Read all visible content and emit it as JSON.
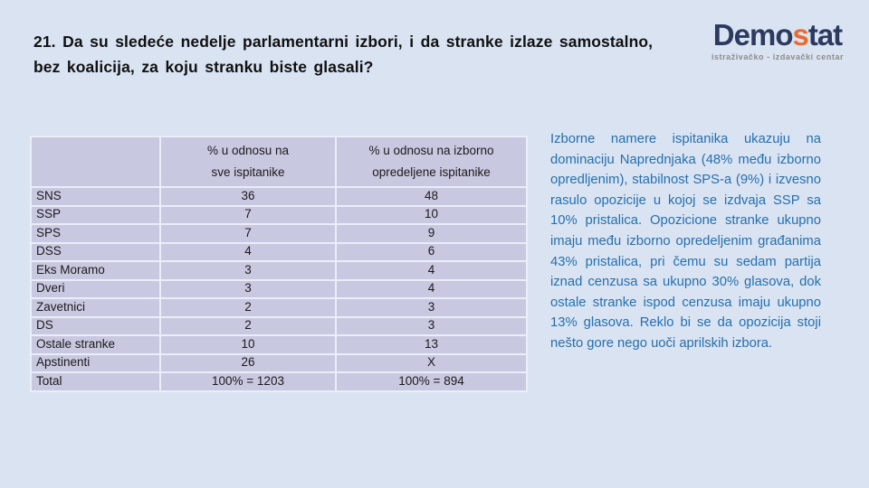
{
  "title": {
    "line1": "21. Da su sledeće nedelje parlamentarni izbori, i da stranke izlaze samostalno,",
    "line2": "bez koalicija, za koju stranku biste glasali?"
  },
  "logo": {
    "text_start": "Demo",
    "text_accent": "s",
    "text_end": "tat",
    "subtitle": "istraživačko - izdavački centar"
  },
  "table": {
    "header": {
      "col_label": "",
      "col_all_line1": "% u odnosu na",
      "col_all_line2": "sve ispitanike",
      "col_decided_line1": "% u odnosu na izborno",
      "col_decided_line2": "opredeljene ispitanike"
    },
    "rows": [
      {
        "label": "SNS",
        "all": "36",
        "decided": "48"
      },
      {
        "label": "SSP",
        "all": "7",
        "decided": "10"
      },
      {
        "label": "SPS",
        "all": "7",
        "decided": "9"
      },
      {
        "label": "DSS",
        "all": "4",
        "decided": "6"
      },
      {
        "label": "Eks Moramo",
        "all": "3",
        "decided": "4"
      },
      {
        "label": "Dveri",
        "all": "3",
        "decided": "4"
      },
      {
        "label": "Zavetnici",
        "all": "2",
        "decided": "3"
      },
      {
        "label": "DS",
        "all": "2",
        "decided": "3"
      },
      {
        "label": "Ostale stranke",
        "all": "10",
        "decided": "13"
      },
      {
        "label": "Apstinenti",
        "all": "26",
        "decided": "X"
      },
      {
        "label": "Total",
        "all": "100% = 1203",
        "decided": "100% = 894"
      }
    ]
  },
  "commentary": {
    "text": "Izborne namere ispitanika ukazuju na dominaciju Naprednjaka (48% među izborno opredljenim), stabilnost SPS-a (9%) i izvesno rasulo opozicije u kojoj se izdvaja SSP sa 10% pristalica. Opozicione stranke ukupno imaju među izborno opredeljenim građanima 43% pristalica, pri čemu su sedam partija iznad cenzusa sa ukupno 30% glasova, dok ostale stranke ispod cenzusa imaju ukupno 13% glasova. Reklo bi se da opozicija stoji nešto gore nego uoči aprilskih izbora."
  },
  "colors": {
    "background": "#dae3f2",
    "table_cell": "#c9c8e1",
    "table_border": "#e9eef8",
    "commentary_text": "#2470ae",
    "logo_navy": "#2b3a5e",
    "logo_orange": "#e96b2e",
    "title_text": "#111111"
  }
}
